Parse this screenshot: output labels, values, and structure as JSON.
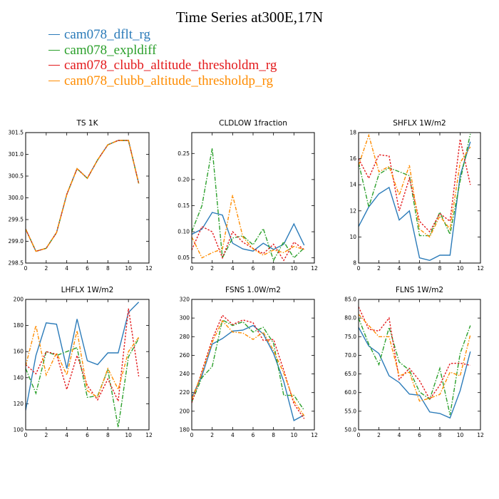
{
  "title": "Time Series at300E,17N",
  "legend": [
    {
      "name": "cam078_dflt_rg",
      "color": "#2b7bb9"
    },
    {
      "name": "cam078_expldiff",
      "color": "#2ca02c"
    },
    {
      "name": "cam078_clubb_altitude_thresholdm_rg",
      "color": "#e31a1c"
    },
    {
      "name": "cam078_clubb_altitude_thresholdp_rg",
      "color": "#ff8c00"
    }
  ],
  "chart_data": [
    {
      "type": "line",
      "title": "TS   1K",
      "xlim": [
        0,
        12
      ],
      "ylim": [
        298.5,
        301.5
      ],
      "xticks": [
        "0",
        "2",
        "4",
        "6",
        "8",
        "10",
        "12"
      ],
      "yticks": [
        "298.5",
        "299.0",
        "299.5",
        "300.0",
        "300.5",
        "301.0",
        "301.5"
      ],
      "x": [
        0,
        1,
        2,
        3,
        4,
        5,
        6,
        7,
        8,
        9,
        10,
        11
      ],
      "series": [
        {
          "name": "cam078_dflt_rg",
          "values": [
            299.28,
            298.77,
            298.84,
            299.2,
            300.08,
            300.67,
            300.45,
            300.87,
            301.22,
            301.32,
            301.32,
            300.33
          ]
        },
        {
          "name": "cam078_expldiff",
          "values": [
            299.28,
            298.77,
            298.84,
            299.2,
            300.08,
            300.67,
            300.45,
            300.87,
            301.22,
            301.32,
            301.32,
            300.33
          ]
        },
        {
          "name": "cam078_clubb_altitude_thresholdm_rg",
          "values": [
            299.28,
            298.77,
            298.84,
            299.2,
            300.08,
            300.67,
            300.45,
            300.87,
            301.22,
            301.32,
            301.32,
            300.33
          ]
        },
        {
          "name": "cam078_clubb_altitude_thresholdp_rg",
          "values": [
            299.28,
            298.77,
            298.84,
            299.2,
            300.08,
            300.67,
            300.45,
            300.87,
            301.22,
            301.32,
            301.32,
            300.33
          ]
        }
      ]
    },
    {
      "type": "line",
      "title": "CLDLOW   1fraction",
      "xlim": [
        0,
        12
      ],
      "ylim": [
        0.04,
        0.29
      ],
      "xticks": [
        "0",
        "2",
        "4",
        "6",
        "8",
        "10",
        "12"
      ],
      "yticks": [
        "0.05",
        "0.10",
        "0.15",
        "0.20",
        "0.25"
      ],
      "yticks_values": [
        0.05,
        0.1,
        0.15,
        0.2,
        0.25
      ],
      "x": [
        0,
        1,
        2,
        3,
        4,
        5,
        6,
        7,
        8,
        9,
        10,
        11
      ],
      "series": [
        {
          "name": "cam078_dflt_rg",
          "values": [
            0.095,
            0.105,
            0.137,
            0.132,
            0.078,
            0.067,
            0.063,
            0.078,
            0.066,
            0.076,
            0.115,
            0.074
          ]
        },
        {
          "name": "cam078_expldiff",
          "values": [
            0.1,
            0.15,
            0.26,
            0.05,
            0.088,
            0.092,
            0.075,
            0.106,
            0.045,
            0.081,
            0.05,
            0.069
          ]
        },
        {
          "name": "cam078_clubb_altitude_thresholdm_rg",
          "values": [
            0.065,
            0.11,
            0.1,
            0.05,
            0.1,
            0.08,
            0.068,
            0.058,
            0.076,
            0.045,
            0.08,
            0.066
          ]
        },
        {
          "name": "cam078_clubb_altitude_thresholdp_rg",
          "values": [
            0.09,
            0.05,
            0.06,
            0.067,
            0.17,
            0.09,
            0.067,
            0.055,
            0.065,
            0.06,
            0.072,
            0.066
          ]
        }
      ]
    },
    {
      "type": "line",
      "title": "SHFLX   1W/m2",
      "xlim": [
        0,
        12
      ],
      "ylim": [
        8,
        18
      ],
      "xticks": [
        "0",
        "2",
        "4",
        "6",
        "8",
        "10",
        "12"
      ],
      "yticks": [
        "8",
        "10",
        "12",
        "14",
        "16",
        "18"
      ],
      "x": [
        0,
        1,
        2,
        3,
        4,
        5,
        6,
        7,
        8,
        9,
        10,
        11
      ],
      "series": [
        {
          "name": "cam078_dflt_rg",
          "values": [
            10.8,
            12.3,
            13.3,
            13.8,
            11.3,
            12.0,
            8.4,
            8.2,
            8.6,
            8.6,
            14.7,
            17.3
          ]
        },
        {
          "name": "cam078_expldiff",
          "values": [
            15.7,
            12.3,
            14.8,
            15.3,
            15.0,
            14.7,
            10.1,
            10.1,
            11.9,
            10.2,
            14.3,
            17.9
          ]
        },
        {
          "name": "cam078_clubb_altitude_thresholdm_rg",
          "values": [
            16.0,
            14.5,
            16.3,
            16.2,
            12.0,
            14.5,
            11.2,
            10.4,
            11.8,
            11.2,
            17.5,
            14.0
          ]
        },
        {
          "name": "cam078_clubb_altitude_thresholdp_rg",
          "values": [
            15.5,
            17.8,
            15.0,
            15.4,
            13.2,
            15.5,
            10.6,
            10.0,
            11.6,
            10.6,
            15.7,
            16.9
          ]
        }
      ]
    },
    {
      "type": "line",
      "title": "LHFLX   1W/m2",
      "xlim": [
        0,
        12
      ],
      "ylim": [
        100,
        200
      ],
      "xticks": [
        "0",
        "2",
        "4",
        "6",
        "8",
        "10",
        "12"
      ],
      "yticks": [
        "100",
        "120",
        "140",
        "160",
        "180",
        "200"
      ],
      "x": [
        0,
        1,
        2,
        3,
        4,
        5,
        6,
        7,
        8,
        9,
        10,
        11
      ],
      "series": [
        {
          "name": "cam078_dflt_rg",
          "values": [
            115,
            157,
            182,
            181,
            147,
            185,
            153,
            150,
            159,
            159,
            190,
            198
          ]
        },
        {
          "name": "cam078_expldiff",
          "values": [
            147,
            128,
            160,
            157,
            160,
            163,
            125,
            126,
            146,
            102,
            156,
            170
          ]
        },
        {
          "name": "cam078_clubb_altitude_thresholdm_rg",
          "values": [
            150,
            143,
            160,
            158,
            131,
            157,
            134,
            123,
            139,
            122,
            193,
            141
          ]
        },
        {
          "name": "cam078_clubb_altitude_thresholdp_rg",
          "values": [
            149,
            180,
            142,
            159,
            142,
            176,
            130,
            125,
            147,
            131,
            160,
            171
          ]
        }
      ]
    },
    {
      "type": "line",
      "title": "FSNS   1.0W/m2",
      "xlim": [
        0,
        12
      ],
      "ylim": [
        180,
        320
      ],
      "xticks": [
        "0",
        "2",
        "4",
        "6",
        "8",
        "10",
        "12"
      ],
      "yticks": [
        "180",
        "200",
        "220",
        "240",
        "260",
        "280",
        "300",
        "320"
      ],
      "x": [
        0,
        1,
        2,
        3,
        4,
        5,
        6,
        7,
        8,
        9,
        10,
        11
      ],
      "series": [
        {
          "name": "cam078_dflt_rg",
          "values": [
            215,
            238,
            272,
            278,
            286,
            287,
            292,
            283,
            262,
            232,
            190,
            196
          ]
        },
        {
          "name": "cam078_expldiff",
          "values": [
            210,
            236,
            248,
            298,
            292,
            296,
            285,
            290,
            273,
            217,
            217,
            201
          ]
        },
        {
          "name": "cam078_clubb_altitude_thresholdm_rg",
          "values": [
            209,
            243,
            277,
            303,
            293,
            298,
            295,
            276,
            277,
            244,
            208,
            192
          ]
        },
        {
          "name": "cam078_clubb_altitude_thresholdp_rg",
          "values": [
            213,
            241,
            274,
            297,
            285,
            284,
            277,
            285,
            265,
            241,
            211,
            195
          ]
        }
      ]
    },
    {
      "type": "line",
      "title": "FLNS   1W/m2",
      "xlim": [
        0,
        12
      ],
      "ylim": [
        50,
        85
      ],
      "xticks": [
        "0",
        "2",
        "4",
        "6",
        "8",
        "10",
        "12"
      ],
      "yticks": [
        "50.0",
        "55.0",
        "60.0",
        "65.0",
        "70.0",
        "75.0",
        "80.0",
        "85.0"
      ],
      "x": [
        0,
        1,
        2,
        3,
        4,
        5,
        6,
        7,
        8,
        9,
        10,
        11
      ],
      "series": [
        {
          "name": "cam078_dflt_rg",
          "values": [
            77.5,
            72.5,
            70.5,
            64.5,
            62.7,
            59.6,
            59.3,
            54.8,
            54.4,
            53.2,
            60.5,
            71.0
          ]
        },
        {
          "name": "cam078_expldiff",
          "values": [
            80.0,
            73.0,
            67.5,
            77.5,
            68.2,
            66.0,
            60.2,
            58.2,
            66.5,
            54.0,
            70.5,
            78.0
          ]
        },
        {
          "name": "cam078_clubb_altitude_thresholdm_rg",
          "values": [
            83.0,
            77.0,
            76.5,
            80.0,
            63.5,
            66.5,
            63.2,
            58.2,
            62.0,
            67.8,
            67.9,
            67.3
          ]
        },
        {
          "name": "cam078_clubb_altitude_thresholdp_rg",
          "values": [
            81.0,
            78.0,
            75.0,
            75.0,
            64.5,
            65.5,
            57.7,
            58.5,
            59.5,
            65.5,
            64.5,
            75.5
          ]
        }
      ]
    }
  ]
}
